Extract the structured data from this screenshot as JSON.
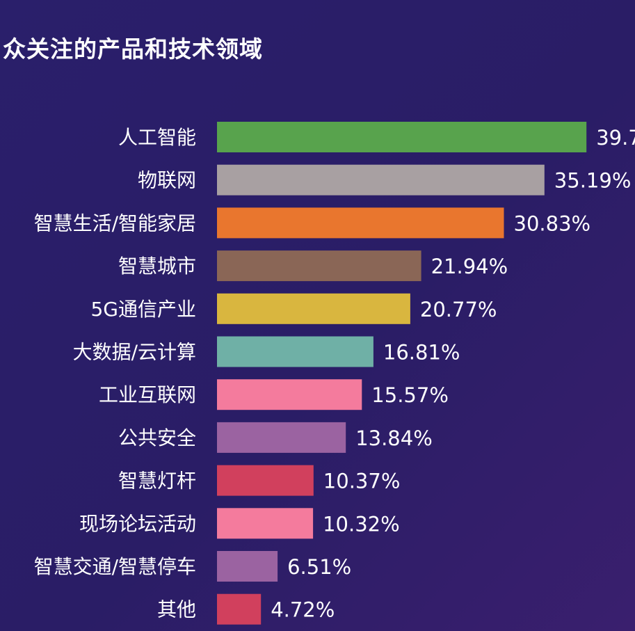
{
  "header": {
    "title": "众关注的产品和技术领域"
  },
  "chart_data": {
    "type": "bar",
    "orientation": "horizontal",
    "title": "众关注的产品和技术领域",
    "categories": [
      "人工智能",
      "物联网",
      "智慧生活/智能家居",
      "智慧城市",
      "5G通信产业",
      "大数据/云计算",
      "工业互联网",
      "公共安全",
      "智慧灯杆",
      "现场论坛活动",
      "智慧交通/智慧停车",
      "其他"
    ],
    "values": [
      39.7,
      35.19,
      30.83,
      21.94,
      20.77,
      16.81,
      15.57,
      13.84,
      10.37,
      10.32,
      6.51,
      4.72
    ],
    "value_labels": [
      "39.7",
      "35.19%",
      "30.83%",
      "21.94%",
      "20.77%",
      "16.81%",
      "15.57%",
      "13.84%",
      "10.37%",
      "10.32%",
      "6.51%",
      "4.72%"
    ],
    "colors": [
      "#58a34d",
      "#a8a0a2",
      "#e9762e",
      "#8a6656",
      "#d9b63f",
      "#6fb0a6",
      "#f47b9d",
      "#9b63a1",
      "#d1405d",
      "#f47b9d",
      "#9b63a1",
      "#d1405d"
    ],
    "unit": "%",
    "grid": false,
    "legend": "none"
  }
}
